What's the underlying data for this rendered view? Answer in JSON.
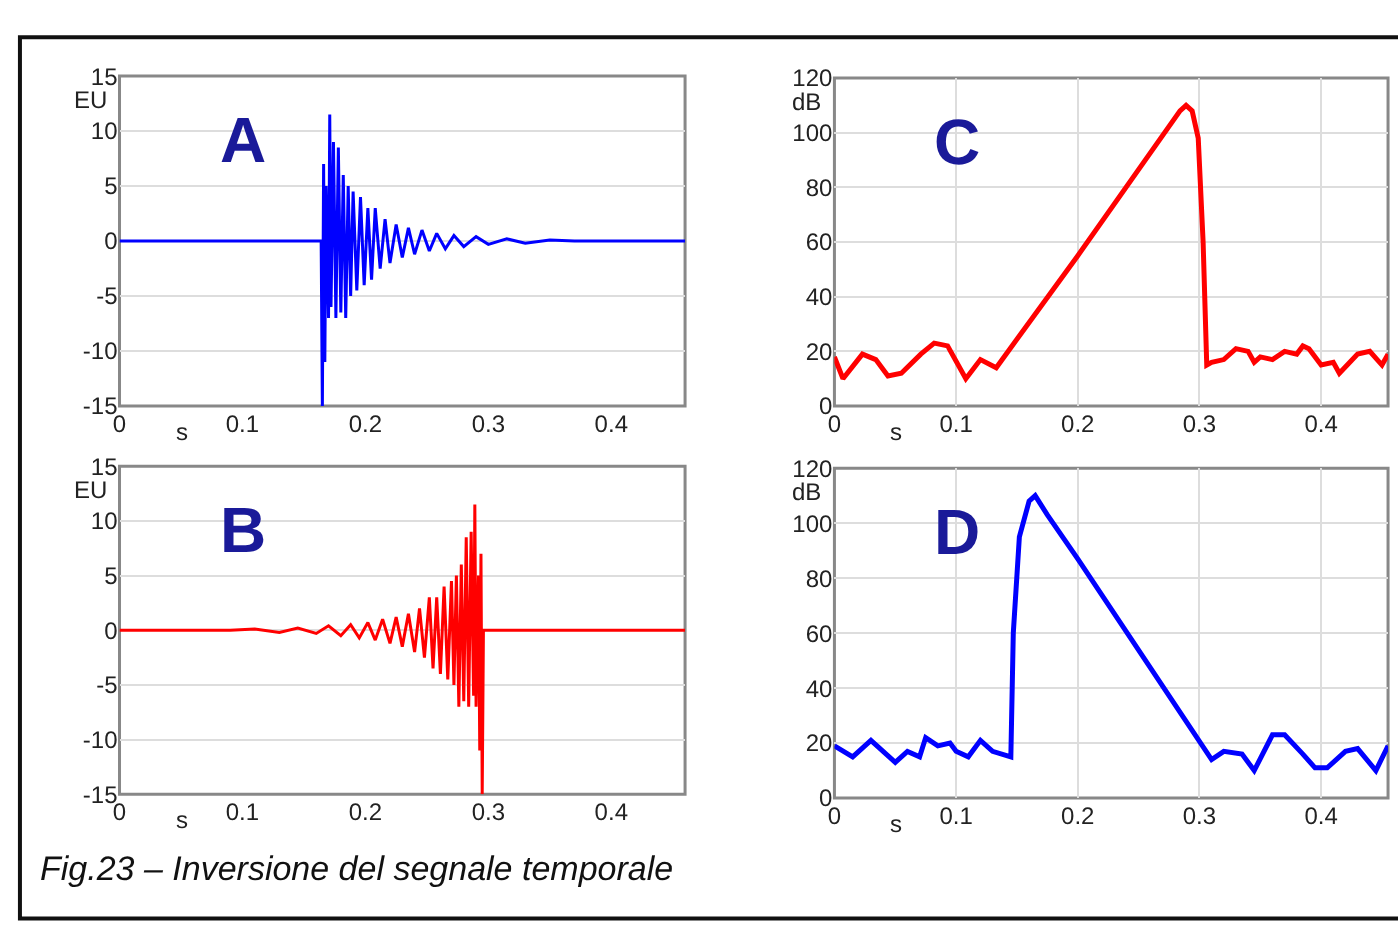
{
  "chart_data": [
    {
      "type": "line",
      "title": "A",
      "xlabel": "s",
      "ylabel": "EU",
      "xlim": [
        0,
        0.46
      ],
      "xticks": [
        0,
        0.1,
        0.2,
        0.3,
        0.4
      ],
      "ylim": [
        -15,
        15
      ],
      "yticks": [
        -15,
        -10,
        -5,
        0,
        5,
        10,
        15
      ],
      "grid": "y",
      "x": [
        0,
        0.164,
        0.165,
        0.166,
        0.167,
        0.168,
        0.17,
        0.171,
        0.172,
        0.174,
        0.176,
        0.178,
        0.18,
        0.182,
        0.184,
        0.186,
        0.188,
        0.19,
        0.193,
        0.196,
        0.199,
        0.202,
        0.205,
        0.208,
        0.212,
        0.216,
        0.22,
        0.225,
        0.23,
        0.235,
        0.24,
        0.246,
        0.252,
        0.258,
        0.265,
        0.272,
        0.28,
        0.29,
        0.3,
        0.315,
        0.33,
        0.35,
        0.37,
        0.46
      ],
      "series": [
        {
          "color": "#0000ff",
          "values": [
            0,
            0,
            -15,
            7,
            -11,
            5,
            -7,
            11.5,
            -6,
            9,
            -7,
            8.5,
            -6.5,
            6,
            -7,
            5,
            -5,
            4.5,
            -4.5,
            4,
            -4,
            3,
            -3.5,
            3,
            -2.5,
            2,
            -2,
            1.5,
            -1.5,
            1.2,
            -1.2,
            1,
            -0.9,
            0.7,
            -0.7,
            0.5,
            -0.5,
            0.4,
            -0.3,
            0.2,
            -0.2,
            0.1,
            0,
            0
          ]
        }
      ]
    },
    {
      "type": "line",
      "title": "B",
      "xlabel": "s",
      "ylabel": "EU",
      "xlim": [
        0,
        0.46
      ],
      "xticks": [
        0,
        0.1,
        0.2,
        0.3,
        0.4
      ],
      "ylim": [
        -15,
        15
      ],
      "yticks": [
        -15,
        -10,
        -5,
        0,
        5,
        10,
        15
      ],
      "grid": "y",
      "x": [
        0,
        0.09,
        0.11,
        0.13,
        0.145,
        0.16,
        0.17,
        0.18,
        0.188,
        0.195,
        0.202,
        0.208,
        0.214,
        0.22,
        0.225,
        0.23,
        0.235,
        0.24,
        0.244,
        0.248,
        0.252,
        0.255,
        0.258,
        0.261,
        0.264,
        0.267,
        0.27,
        0.272,
        0.274,
        0.276,
        0.278,
        0.28,
        0.282,
        0.284,
        0.286,
        0.288,
        0.289,
        0.29,
        0.292,
        0.293,
        0.294,
        0.295,
        0.296,
        0.46
      ],
      "series": [
        {
          "color": "#ff0000",
          "values": [
            0,
            0,
            0.1,
            -0.2,
            0.2,
            -0.3,
            0.4,
            -0.5,
            0.5,
            -0.7,
            0.7,
            -0.9,
            1,
            -1.2,
            1.2,
            -1.5,
            1.5,
            -2,
            2,
            -2.5,
            3,
            -3.5,
            3,
            -4,
            4,
            -4.5,
            4.5,
            -5,
            5,
            -7,
            6,
            -6.5,
            8.5,
            -7,
            9,
            -6,
            11.5,
            -7,
            5,
            -11,
            7,
            -15,
            0,
            0
          ]
        }
      ]
    },
    {
      "type": "line",
      "title": "C",
      "xlabel": "s",
      "ylabel": "dB",
      "xlim": [
        0,
        0.455
      ],
      "xticks": [
        0,
        0.1,
        0.2,
        0.3,
        0.4
      ],
      "ylim": [
        0,
        120
      ],
      "yticks": [
        0,
        20,
        40,
        60,
        80,
        100,
        120
      ],
      "grid": true,
      "x": [
        0,
        0.007,
        0.023,
        0.034,
        0.044,
        0.055,
        0.071,
        0.082,
        0.093,
        0.108,
        0.12,
        0.133,
        0.2,
        0.284,
        0.289,
        0.294,
        0.299,
        0.303,
        0.306,
        0.31,
        0.32,
        0.33,
        0.34,
        0.345,
        0.35,
        0.36,
        0.37,
        0.38,
        0.385,
        0.39,
        0.4,
        0.41,
        0.415,
        0.43,
        0.44,
        0.45,
        0.455
      ],
      "series": [
        {
          "color": "#ff0000",
          "values": [
            18,
            10,
            19,
            17,
            11,
            12,
            19,
            23,
            22,
            10,
            17,
            14,
            55,
            108,
            110,
            108,
            98,
            60,
            15,
            16,
            17,
            21,
            20,
            16,
            18,
            17,
            20,
            19,
            22,
            21,
            15,
            16,
            12,
            19,
            20,
            15,
            19
          ]
        }
      ]
    },
    {
      "type": "line",
      "title": "D",
      "xlabel": "s",
      "ylabel": "dB",
      "xlim": [
        0,
        0.455
      ],
      "xticks": [
        0,
        0.1,
        0.2,
        0.3,
        0.4
      ],
      "ylim": [
        0,
        120
      ],
      "yticks": [
        0,
        20,
        40,
        60,
        80,
        100,
        120
      ],
      "grid": true,
      "x": [
        0,
        0.015,
        0.03,
        0.05,
        0.06,
        0.07,
        0.075,
        0.085,
        0.095,
        0.1,
        0.11,
        0.12,
        0.13,
        0.145,
        0.147,
        0.152,
        0.16,
        0.165,
        0.175,
        0.2,
        0.31,
        0.32,
        0.335,
        0.345,
        0.36,
        0.37,
        0.385,
        0.395,
        0.405,
        0.42,
        0.43,
        0.445,
        0.455
      ],
      "series": [
        {
          "color": "#0000ff",
          "values": [
            19,
            15,
            21,
            13,
            17,
            15,
            22,
            19,
            20,
            17,
            15,
            21,
            17,
            15,
            60,
            95,
            108,
            110,
            103,
            87,
            14,
            17,
            16,
            10,
            23,
            23,
            16,
            11,
            11,
            17,
            18,
            10,
            19
          ]
        }
      ],
      "annotations": [
        "Fig.23 – Inversione del segnale temporale"
      ]
    }
  ]
}
